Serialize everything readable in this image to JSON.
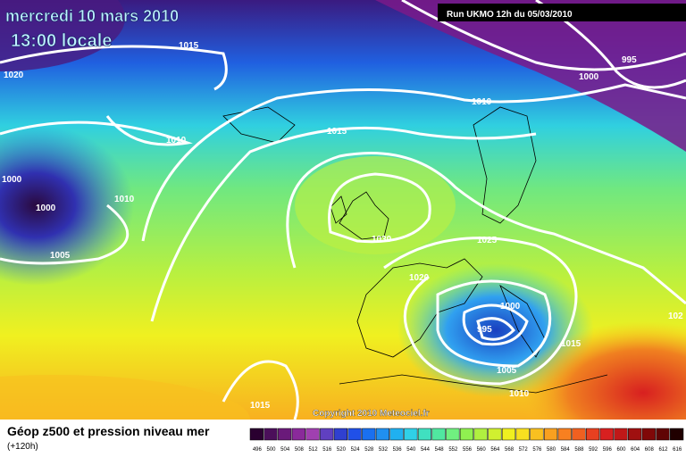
{
  "header": {
    "date": "mercredi 10 mars 2010",
    "time": "13:00 locale",
    "run": "Run UKMO 12h du 05/03/2010"
  },
  "isobar_labels": [
    "1015",
    "1020",
    "995",
    "1000",
    "1010",
    "1015",
    "1010",
    "1000",
    "1000",
    "1010",
    "1030",
    "1025",
    "1005",
    "1020",
    "1000",
    "995",
    "1015",
    "1005",
    "1010",
    "1015",
    "102"
  ],
  "copyright": "Copyright 2010 Meteociel.fr",
  "legend": {
    "title": "Géop z500 et pression niveau mer",
    "subtitle": "(+120h)",
    "scale": [
      496,
      500,
      504,
      508,
      512,
      516,
      520,
      524,
      528,
      532,
      536,
      540,
      544,
      548,
      552,
      556,
      560,
      564,
      568,
      572,
      576,
      580,
      584,
      588,
      592,
      596,
      600,
      604,
      608,
      612,
      616
    ],
    "colors": [
      "#2a0030",
      "#4b0f5a",
      "#6a1a7a",
      "#8a2a9a",
      "#a040b0",
      "#6040c0",
      "#3040d0",
      "#2050e8",
      "#1a70f0",
      "#2090f0",
      "#20b0f0",
      "#30d0e8",
      "#40e0c0",
      "#50e8a0",
      "#70f080",
      "#90f050",
      "#b0f040",
      "#d0f030",
      "#f0f020",
      "#f8e020",
      "#f8c020",
      "#f8a020",
      "#f88020",
      "#f06020",
      "#e84020",
      "#d82020",
      "#c01818",
      "#a01010",
      "#800808",
      "#600404",
      "#200000"
    ]
  }
}
